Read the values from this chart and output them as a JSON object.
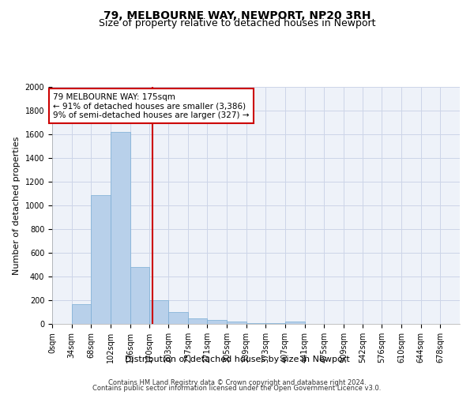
{
  "title": "79, MELBOURNE WAY, NEWPORT, NP20 3RH",
  "subtitle": "Size of property relative to detached houses in Newport",
  "xlabel": "Distribution of detached houses by size in Newport",
  "ylabel": "Number of detached properties",
  "footnote1": "Contains HM Land Registry data © Crown copyright and database right 2024.",
  "footnote2": "Contains public sector information licensed under the Open Government Licence v3.0.",
  "property_label": "79 MELBOURNE WAY: 175sqm",
  "annotation_line1": "← 91% of detached houses are smaller (3,386)",
  "annotation_line2": "9% of semi-detached houses are larger (327) →",
  "property_value": 175,
  "bar_color": "#b8d0ea",
  "bar_edge_color": "#7aadd4",
  "vline_color": "#cc0000",
  "annotation_box_color": "#cc0000",
  "grid_color": "#ccd5e8",
  "categories": [
    "0sqm",
    "34sqm",
    "68sqm",
    "102sqm",
    "136sqm",
    "170sqm",
    "203sqm",
    "237sqm",
    "271sqm",
    "305sqm",
    "339sqm",
    "373sqm",
    "407sqm",
    "441sqm",
    "475sqm",
    "509sqm",
    "542sqm",
    "576sqm",
    "610sqm",
    "644sqm",
    "678sqm"
  ],
  "bin_edges": [
    0,
    34,
    68,
    102,
    136,
    170,
    203,
    237,
    271,
    305,
    339,
    373,
    407,
    441,
    475,
    509,
    542,
    576,
    610,
    644,
    678,
    712
  ],
  "values": [
    0,
    165,
    1085,
    1620,
    480,
    200,
    100,
    45,
    35,
    20,
    8,
    5,
    18,
    0,
    0,
    0,
    0,
    0,
    0,
    0,
    0
  ],
  "ylim": [
    0,
    2000
  ],
  "yticks": [
    0,
    200,
    400,
    600,
    800,
    1000,
    1200,
    1400,
    1600,
    1800,
    2000
  ],
  "title_fontsize": 10,
  "subtitle_fontsize": 9,
  "axis_label_fontsize": 8,
  "tick_fontsize": 7,
  "annotation_fontsize": 7.5,
  "footnote_fontsize": 6,
  "background_color": "#eef2f9"
}
